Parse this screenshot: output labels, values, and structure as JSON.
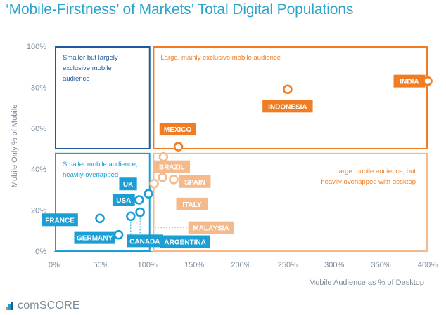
{
  "title": "‘Mobile-Firstness’ of Markets’ Total Digital Populations",
  "brand": {
    "name": "comSCORE"
  },
  "colors": {
    "blue": "#1a9ed4",
    "dark_blue": "#1f5a99",
    "orange": "#f07d23",
    "light_orange": "#f5ba8c",
    "axis_gray": "#7a8a99",
    "grid": "#d9d9d9"
  },
  "chart_data": {
    "type": "scatter",
    "title": "‘Mobile-Firstness’ of Markets’ Total Digital Populations",
    "xlabel": "Mobile Audience as % of Desktop",
    "ylabel": "Mobile Only % of Mobile",
    "xlim": [
      0,
      400
    ],
    "ylim": [
      0,
      100
    ],
    "xticks": [
      0,
      50,
      100,
      150,
      200,
      250,
      300,
      350,
      400
    ],
    "xtick_labels": [
      "0%",
      "50%",
      "100%",
      "150%",
      "200%",
      "250%",
      "300%",
      "350%",
      "400%"
    ],
    "yticks": [
      0,
      20,
      40,
      60,
      80,
      100
    ],
    "ytick_labels": [
      "0%",
      "20%",
      "40%",
      "60%",
      "80%",
      "100%"
    ],
    "grid": false,
    "quadrants": [
      {
        "label": "Smaller but largely exclusive mobile audience",
        "lines": [
          "Smaller but largely",
          "exclusive mobile",
          "audience"
        ],
        "x": [
          0,
          103
        ],
        "y": [
          50,
          100
        ],
        "style": "dark-blue"
      },
      {
        "label": "Large, mainly exclusive mobile audience",
        "lines": [
          "Large, mainly exclusive mobile audience"
        ],
        "x": [
          105,
          400
        ],
        "y": [
          50,
          100
        ],
        "style": "orange"
      },
      {
        "label": "Smaller mobile audience, heavily overlapped",
        "lines": [
          "Smaller mobile audience,",
          "heavily overlapped"
        ],
        "x": [
          0,
          103
        ],
        "y": [
          0,
          48
        ],
        "style": "blue"
      },
      {
        "label": "Large mobile audience, but heavily overlapped with desktop",
        "lines": [
          "Large mobile audience, but",
          "heavily overlapped with desktop"
        ],
        "x": [
          105,
          400
        ],
        "y": [
          0,
          48
        ],
        "style": "light-orange"
      }
    ],
    "points": [
      {
        "name": "INDIA",
        "x": 400,
        "y": 83,
        "group": "orange"
      },
      {
        "name": "INDONESIA",
        "x": 250,
        "y": 79,
        "group": "orange"
      },
      {
        "name": "MEXICO",
        "x": 133,
        "y": 51,
        "group": "orange"
      },
      {
        "name": "BRAZIL",
        "x": 117,
        "y": 46,
        "group": "light-orange"
      },
      {
        "name": "SPAIN",
        "x": 128,
        "y": 35,
        "group": "light-orange"
      },
      {
        "name": "ITALY",
        "x": 116,
        "y": 36,
        "group": "light-orange"
      },
      {
        "name": "MALAYSIA",
        "x": 107,
        "y": 33,
        "group": "light-orange"
      },
      {
        "name": "UK",
        "x": 101,
        "y": 28,
        "group": "blue"
      },
      {
        "name": "USA",
        "x": 91,
        "y": 25,
        "group": "blue"
      },
      {
        "name": "FRANCE",
        "x": 49,
        "y": 16,
        "group": "blue"
      },
      {
        "name": "CANADA",
        "x": 82,
        "y": 17,
        "group": "blue"
      },
      {
        "name": "ARGENTINA",
        "x": 92,
        "y": 19,
        "group": "blue"
      },
      {
        "name": "GERMANY",
        "x": 69,
        "y": 8,
        "group": "blue"
      }
    ]
  }
}
